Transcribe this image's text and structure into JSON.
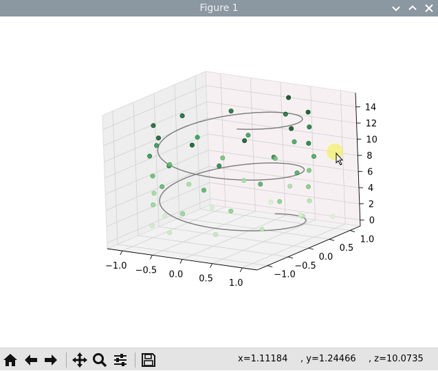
{
  "window": {
    "title": "Figure 1",
    "controls": [
      "chevron-down-icon",
      "chevron-up-icon",
      "close-icon"
    ]
  },
  "toolbar": {
    "buttons": [
      {
        "name": "home-button",
        "icon": "home-icon"
      },
      {
        "name": "back-button",
        "icon": "arrow-left-icon"
      },
      {
        "name": "forward-button",
        "icon": "arrow-right-icon"
      },
      {
        "name": "pan-button",
        "icon": "move-icon"
      },
      {
        "name": "zoom-button",
        "icon": "magnifier-icon"
      },
      {
        "name": "configure-subplots-button",
        "icon": "sliders-icon"
      },
      {
        "name": "save-button",
        "icon": "floppy-disk-icon"
      }
    ]
  },
  "status": {
    "x": "x=1.11184",
    "y": ", y=1.24466",
    "z": ", z=10.0735"
  },
  "chart_data": {
    "type": "scatter",
    "projection": "3d",
    "title": "",
    "line_series": {
      "kind": "helix",
      "color": "#808080",
      "x": "sin(z)",
      "y": "cos(z)",
      "z_range": [
        0,
        15
      ]
    },
    "scatter_series": {
      "colormap": "Greens",
      "color_by": "z",
      "points": [
        [
          0.9,
          1.1,
          0.4
        ],
        [
          0.5,
          0.9,
          0.6
        ],
        [
          -0.2,
          1.2,
          0.8
        ],
        [
          -0.7,
          0.5,
          1.1
        ],
        [
          -1.0,
          -0.2,
          1.3
        ],
        [
          -0.8,
          -0.8,
          1.6
        ],
        [
          -0.3,
          -1.1,
          1.9
        ],
        [
          0.4,
          -1.0,
          2.2
        ],
        [
          0.9,
          -0.6,
          2.5
        ],
        [
          1.1,
          0.1,
          2.8
        ],
        [
          0.8,
          0.7,
          3.1
        ],
        [
          0.2,
          1.1,
          3.4
        ],
        [
          -0.5,
          1.0,
          3.6
        ],
        [
          -1.0,
          0.4,
          3.9
        ],
        [
          -1.1,
          -0.3,
          4.2
        ],
        [
          -0.7,
          -0.9,
          4.5
        ],
        [
          0.0,
          -1.2,
          4.8
        ],
        [
          0.6,
          -0.9,
          5.1
        ],
        [
          1.0,
          -0.3,
          5.4
        ],
        [
          1.0,
          0.4,
          5.7
        ],
        [
          0.6,
          1.0,
          6.0
        ],
        [
          -0.1,
          1.2,
          6.3
        ],
        [
          -0.7,
          0.8,
          6.6
        ],
        [
          -1.1,
          0.1,
          6.9
        ],
        [
          -0.9,
          -0.6,
          7.2
        ],
        [
          -0.4,
          -1.1,
          7.5
        ],
        [
          0.3,
          -1.1,
          7.8
        ],
        [
          0.9,
          -0.6,
          8.1
        ],
        [
          1.1,
          0.0,
          8.4
        ],
        [
          0.9,
          0.7,
          8.7
        ],
        [
          0.3,
          1.1,
          9.0
        ],
        [
          -0.4,
          1.0,
          9.3
        ],
        [
          -0.9,
          0.5,
          9.6
        ],
        [
          -1.1,
          -0.2,
          9.9
        ],
        [
          -0.8,
          -0.8,
          10.2
        ],
        [
          -0.2,
          -1.2,
          10.5
        ],
        [
          0.5,
          -1.0,
          10.8
        ],
        [
          1.0,
          -0.4,
          11.1
        ],
        [
          1.1,
          0.3,
          11.4
        ],
        [
          0.7,
          0.9,
          11.7
        ],
        [
          0.1,
          1.2,
          12.0
        ],
        [
          -0.6,
          0.9,
          12.3
        ],
        [
          -1.0,
          0.3,
          12.6
        ],
        [
          -1.0,
          -0.4,
          12.9
        ],
        [
          -0.5,
          -1.0,
          13.2
        ],
        [
          0.2,
          -1.2,
          13.5
        ],
        [
          0.8,
          -0.8,
          13.8
        ],
        [
          1.1,
          -0.1,
          14.1
        ],
        [
          0.9,
          0.6,
          14.4
        ],
        [
          0.3,
          1.0,
          14.7
        ]
      ]
    },
    "x_axis": {
      "ticks": [
        "−1.0",
        "−0.5",
        "0.0",
        "0.5",
        "1.0"
      ],
      "range": [
        -1.25,
        1.25
      ]
    },
    "y_axis": {
      "ticks": [
        "−1.0",
        "−0.5",
        "0.0",
        "0.5",
        "1.0"
      ],
      "range": [
        -1.25,
        1.25
      ]
    },
    "z_axis": {
      "ticks": [
        "0",
        "2",
        "4",
        "6",
        "8",
        "10",
        "12",
        "14"
      ],
      "range": [
        -0.75,
        15.75
      ]
    },
    "grid": true
  }
}
